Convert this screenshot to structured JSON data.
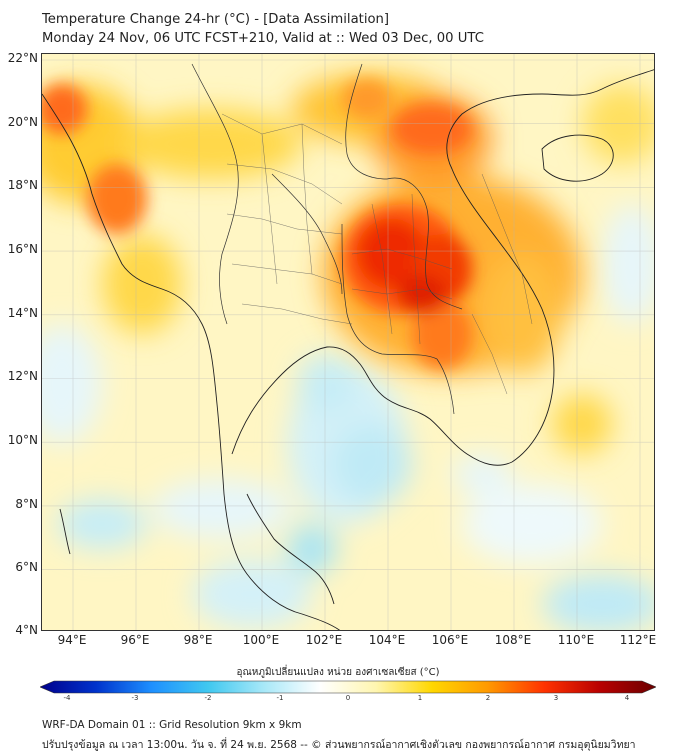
{
  "header": {
    "title_line1": "Temperature Change 24-hr (°C) - [Data Assimilation]",
    "title_line2": "Monday 24 Nov, 06 UTC FCST+210, Valid at :: Wed 03 Dec, 00 UTC"
  },
  "map": {
    "lat_range": [
      4,
      22
    ],
    "lon_range": [
      93,
      112.5
    ],
    "lat_ticks": [
      "22°N",
      "20°N",
      "18°N",
      "16°N",
      "14°N",
      "12°N",
      "10°N",
      "8°N",
      "6°N",
      "4°N"
    ],
    "lon_ticks": [
      "94°E",
      "96°E",
      "98°E",
      "100°E",
      "102°E",
      "104°E",
      "106°E",
      "108°E",
      "110°E",
      "112°E"
    ],
    "field_background_color": "#fff6c4",
    "coastline_color": "#222222"
  },
  "colorbar": {
    "label": "อุณหภูมิเปลี่ยนแปลง หน่วย องศาเซลเซียส (°C)",
    "min": -4,
    "max": 4,
    "ticks": [
      "-4",
      "-3",
      "-2",
      "-1",
      "0",
      "1",
      "2",
      "3",
      "4"
    ],
    "colors": [
      "#00008b",
      "#0033cc",
      "#1e90ff",
      "#40c8f0",
      "#a8e8f8",
      "#ffffff",
      "#fff6b0",
      "#ffd700",
      "#ff9900",
      "#ff3300",
      "#b80000",
      "#6b0000"
    ]
  },
  "footer": {
    "line1": "WRF-DA Domain 01 :: Grid Resolution 9km x 9km",
    "line2": "ปรับปรุงข้อมูล ณ เวลา 13:00น. วัน จ. ที่ 24 พ.ย. 2568 -- © ส่วนพยากรณ์อากาศเชิงตัวเลข กองพยากรณ์อากาศ กรมอุตุนิยมวิทยา"
  }
}
